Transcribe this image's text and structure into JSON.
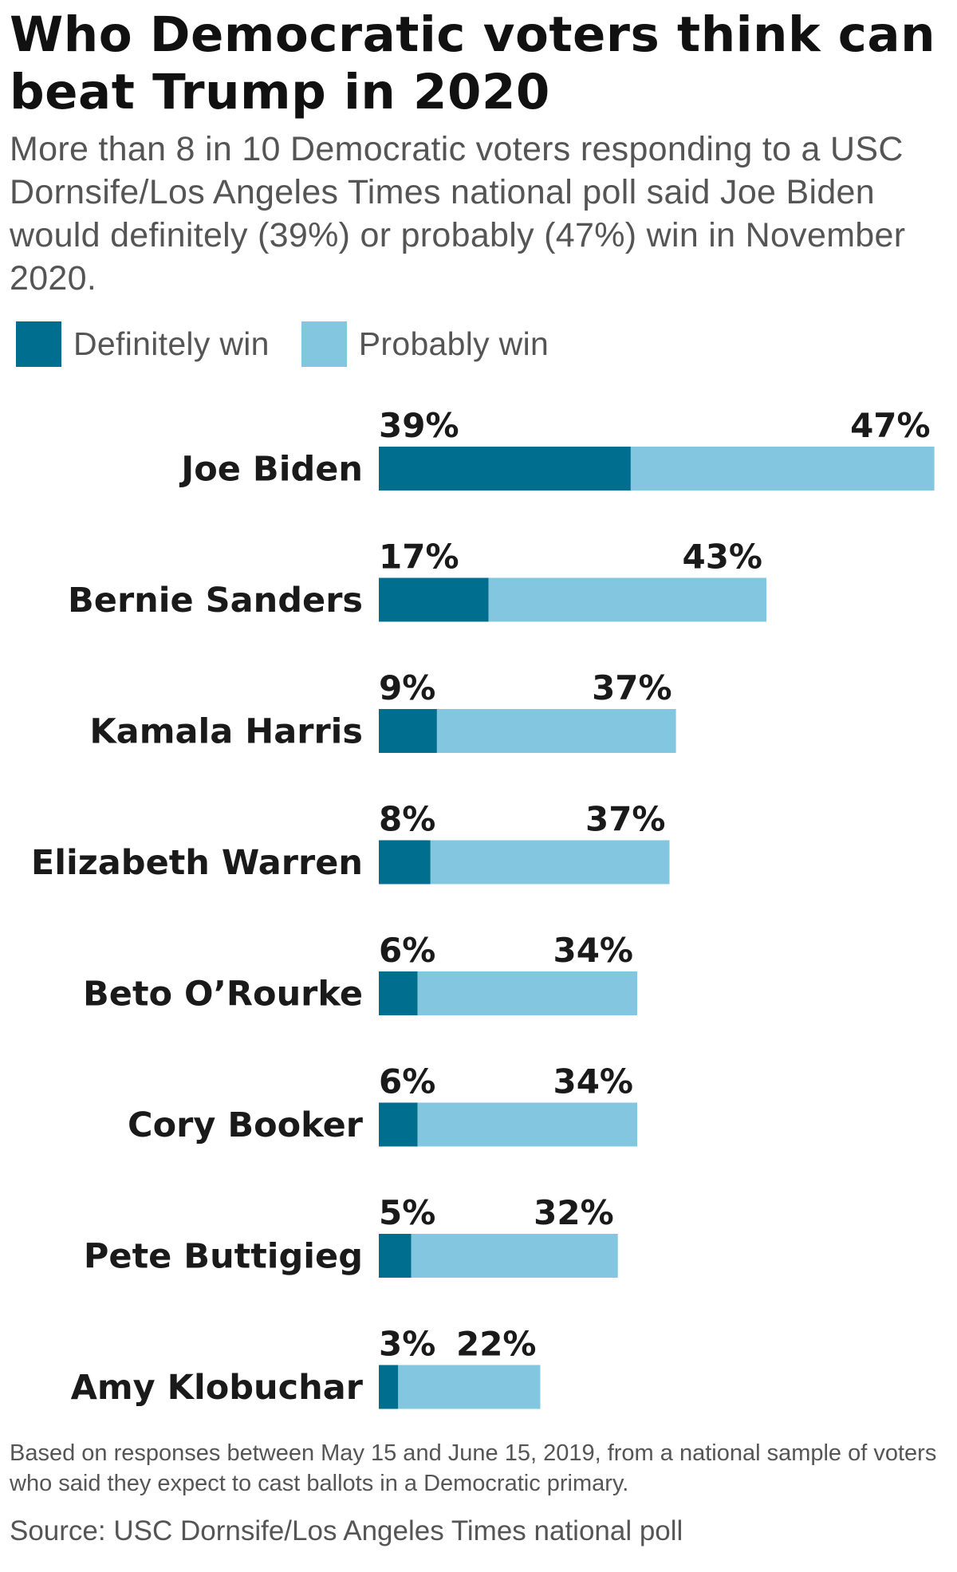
{
  "title": "Who Democratic voters think can beat Trump in 2020",
  "subtitle": "More than 8 in 10 Democratic voters responding to a USC Dornsife/Los Angeles Times national poll said Joe Biden would definitely (39%) or probably (47%) win in November 2020.",
  "footnote": "Based on responses between May 15 and June 15, 2019, from a national sample of voters who said they expect to cast ballots in a Democratic primary.",
  "source": "Source: USC Dornsife/Los Angeles Times national poll",
  "colors": {
    "definitely": "#006e8f",
    "probably": "#82c7df",
    "label_text": "#1a1a1a"
  },
  "chart_data": {
    "type": "bar",
    "orientation": "horizontal",
    "stacked": true,
    "categories": [
      "Joe Biden",
      "Bernie Sanders",
      "Kamala Harris",
      "Elizabeth Warren",
      "Beto O’Rourke",
      "Cory Booker",
      "Pete Buttigieg",
      "Amy Klobuchar"
    ],
    "series": [
      {
        "name": "Definitely win",
        "values": [
          39,
          17,
          9,
          8,
          6,
          6,
          5,
          3
        ],
        "labels": [
          "39%",
          "17%",
          "9%",
          "8%",
          "6%",
          "6%",
          "5%",
          "3%"
        ]
      },
      {
        "name": "Probably win",
        "values": [
          47,
          43,
          37,
          37,
          34,
          34,
          32,
          22
        ],
        "labels": [
          "47%",
          "43%",
          "37%",
          "37%",
          "34%",
          "34%",
          "32%",
          "22%"
        ]
      }
    ],
    "legend": "top-left",
    "grid": false,
    "xlim": [
      0,
      86
    ]
  }
}
